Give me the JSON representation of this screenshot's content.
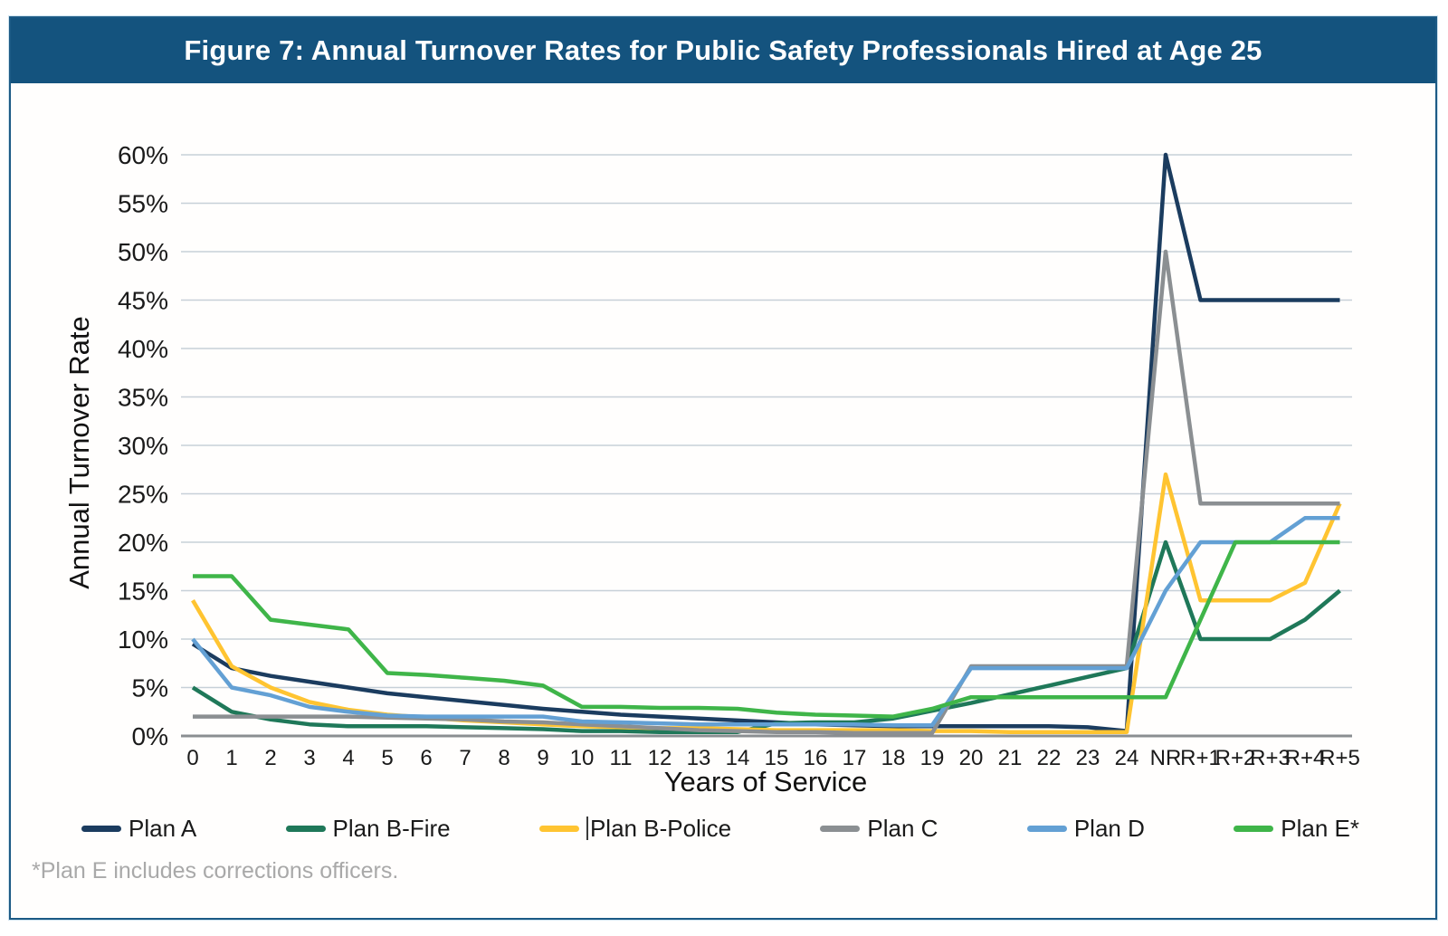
{
  "header": {
    "title": "Figure 7: Annual Turnover Rates for Public Safety Professionals Hired at Age 25"
  },
  "footnote": "*Plan E includes corrections officers.",
  "colors": {
    "titlebar_bg": "#14537e",
    "title_text": "#ffffff",
    "gridline": "#c7d0d8",
    "zero_axis": "#8a8e91",
    "footnote_text": "#a9a9a9"
  },
  "chart_data": {
    "type": "line",
    "title": "Figure 7: Annual Turnover Rates for Public Safety Professionals Hired at Age 25",
    "xlabel": "Years of Service",
    "ylabel": "Annual Turnover Rate",
    "ylim": [
      0,
      60
    ],
    "ytick_step": 5,
    "ytick_format": "percent",
    "grid": true,
    "legend_position": "bottom",
    "legend": {
      "cursor_before": "Plan B-Police"
    },
    "categories": [
      "0",
      "1",
      "2",
      "3",
      "4",
      "5",
      "6",
      "7",
      "8",
      "9",
      "10",
      "11",
      "12",
      "13",
      "14",
      "15",
      "16",
      "17",
      "18",
      "19",
      "20",
      "21",
      "22",
      "23",
      "24",
      "NR",
      "R+1",
      "R+2",
      "R+3",
      "R+4",
      "R+5"
    ],
    "series": [
      {
        "name": "Plan A",
        "color": "#1b3c5f",
        "values": [
          9.5,
          7,
          6.2,
          5.6,
          5,
          4.4,
          4,
          3.6,
          3.2,
          2.8,
          2.5,
          2.2,
          2,
          1.8,
          1.6,
          1.4,
          1.2,
          1.1,
          1,
          1,
          1,
          1,
          1,
          0.9,
          0.5,
          60,
          45,
          45,
          45,
          45,
          45
        ]
      },
      {
        "name": "Plan B-Fire",
        "color": "#1f7859",
        "values": [
          5,
          2.5,
          1.7,
          1.2,
          1,
          1,
          1,
          0.9,
          0.8,
          0.7,
          0.5,
          0.5,
          0.4,
          0.4,
          0.4,
          1.3,
          1.4,
          1.4,
          1.8,
          2.6,
          3.4,
          4.3,
          5.2,
          6.1,
          7,
          20,
          10,
          10,
          10,
          12,
          15
        ]
      },
      {
        "name": "Plan B-Police",
        "color": "#ffc431",
        "values": [
          14,
          7.2,
          5,
          3.5,
          2.7,
          2.2,
          1.9,
          1.6,
          1.4,
          1.2,
          1,
          0.9,
          0.8,
          0.8,
          0.7,
          0.6,
          0.6,
          0.6,
          0.6,
          0.5,
          0.5,
          0.4,
          0.4,
          0.4,
          0.4,
          27,
          14,
          14,
          14,
          15.8,
          24
        ]
      },
      {
        "name": "Plan C",
        "color": "#8b8f92",
        "values": [
          2,
          2,
          2,
          2,
          2,
          1.9,
          1.8,
          1.7,
          1.5,
          1.4,
          1.2,
          1,
          0.8,
          0.6,
          0.5,
          0.4,
          0.4,
          0.3,
          0.3,
          0.3,
          7.2,
          7.2,
          7.2,
          7.2,
          7.2,
          50,
          24,
          24,
          24,
          24,
          24
        ]
      },
      {
        "name": "Plan D",
        "color": "#63a0d4",
        "values": [
          10,
          5,
          4.2,
          3,
          2.5,
          2.1,
          2,
          2,
          2,
          2,
          1.5,
          1.4,
          1.3,
          1.2,
          1.2,
          1.2,
          1.2,
          1.2,
          1.1,
          1.1,
          7,
          7,
          7,
          7,
          7,
          15,
          20,
          20,
          20,
          22.5,
          22.5
        ]
      },
      {
        "name": "Plan E*",
        "color": "#3fb549",
        "values": [
          16.5,
          16.5,
          12,
          11.5,
          11,
          6.5,
          6.3,
          6,
          5.7,
          5.2,
          3,
          3,
          2.9,
          2.9,
          2.8,
          2.4,
          2.2,
          2.1,
          2,
          2.8,
          4,
          4,
          4,
          4,
          4,
          4,
          12,
          20,
          20,
          20,
          20
        ]
      }
    ]
  }
}
